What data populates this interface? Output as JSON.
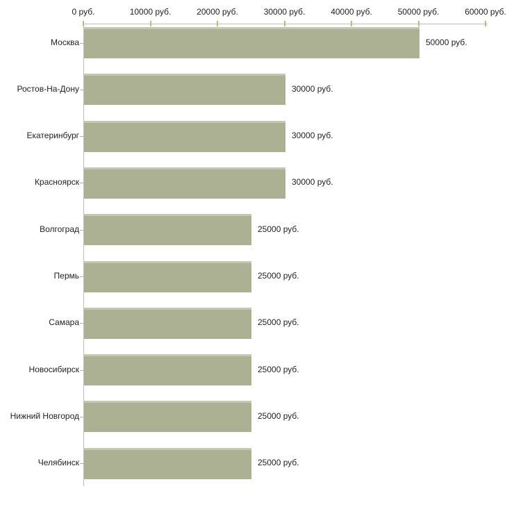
{
  "chart_data": {
    "type": "bar",
    "orientation": "horizontal",
    "title": "",
    "xlabel": "",
    "ylabel": "",
    "grid": false,
    "legend_position": "none",
    "xlim": [
      0,
      60000
    ],
    "categories": [
      "Москва",
      "Ростов-На-Дону",
      "Екатеринбург",
      "Красноярск",
      "Волгоград",
      "Пермь",
      "Самара",
      "Новосибирск",
      "Нижний Новгород",
      "Челябинск"
    ],
    "values": [
      50000,
      30000,
      30000,
      30000,
      25000,
      25000,
      25000,
      25000,
      25000,
      25000
    ],
    "value_labels": [
      "50000 руб.",
      "30000 руб.",
      "30000 руб.",
      "30000 руб.",
      "25000 руб.",
      "25000 руб.",
      "25000 руб.",
      "25000 руб.",
      "25000 руб.",
      "25000 руб."
    ],
    "x_ticks": [
      {
        "value": 0,
        "label": "0 руб."
      },
      {
        "value": 10000,
        "label": "10000 руб."
      },
      {
        "value": 20000,
        "label": "20000 руб."
      },
      {
        "value": 30000,
        "label": "30000 руб."
      },
      {
        "value": 40000,
        "label": "40000 руб."
      },
      {
        "value": 50000,
        "label": "50000 руб."
      },
      {
        "value": 60000,
        "label": "60000 руб."
      }
    ],
    "colors": {
      "bar": "#acb194",
      "bar_top_edge": "#c4c8af",
      "axis": "#bdbdbd",
      "x_tick_mark": "#b9bc82",
      "y_tick_mark": "#b2b49b",
      "text": "#222222",
      "background": "#ffffff"
    }
  }
}
